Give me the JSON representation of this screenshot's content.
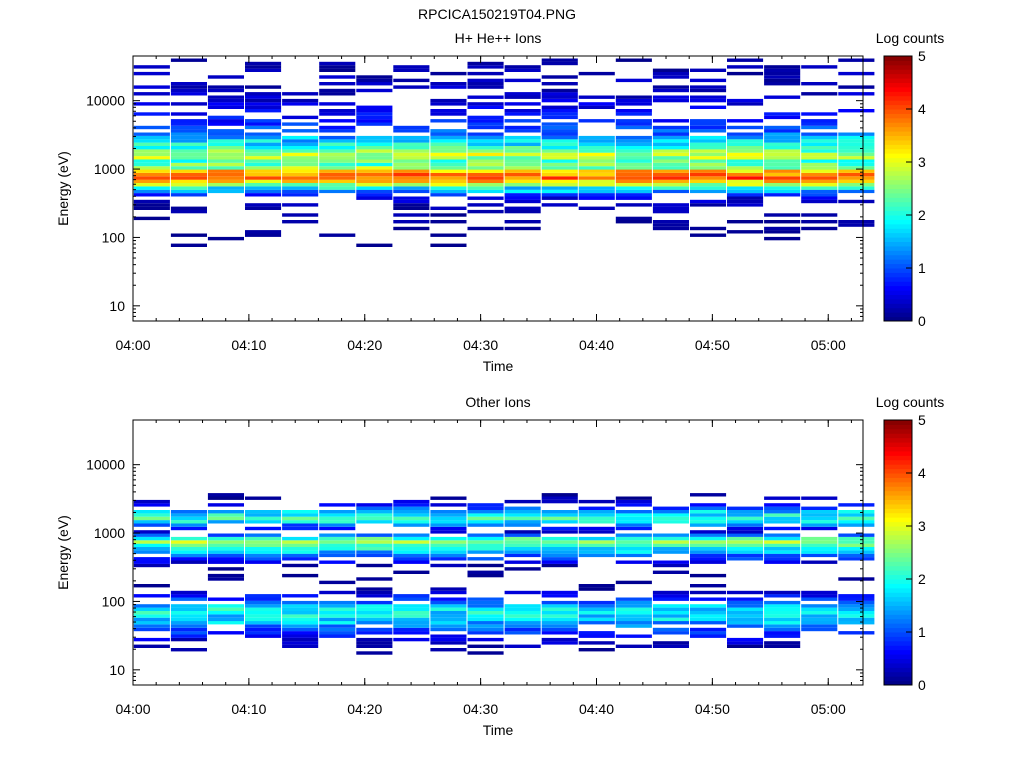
{
  "figure": {
    "title": "RPCICA150219T04.PNG"
  },
  "chart_data": [
    {
      "type": "heatmap",
      "title": "H+ He++ Ions",
      "xlabel": "Time",
      "ylabel": "Energy (eV)",
      "colorbar_label": "Log counts",
      "x_ticks": [
        "04:00",
        "04:10",
        "04:20",
        "04:30",
        "04:40",
        "04:50",
        "05:00"
      ],
      "y_ticks": [
        "10",
        "100",
        "1000",
        "10000"
      ],
      "colorbar_ticks": [
        "0",
        "1",
        "2",
        "3",
        "4",
        "5"
      ],
      "xlim": [
        "04:00",
        "05:03"
      ],
      "ylim": [
        6,
        45000
      ],
      "y_scale": "log",
      "clim": [
        0,
        5
      ],
      "time_bins": [
        "04:01.6",
        "04:04.8",
        "04:08.0",
        "04:11.2",
        "04:14.4",
        "04:17.6",
        "04:20.8",
        "04:24.0",
        "04:27.2",
        "04:30.4",
        "04:33.6",
        "04:36.8",
        "04:40.0",
        "04:43.2",
        "04:46.4",
        "04:49.6",
        "04:52.8",
        "04:56.0",
        "04:59.2",
        "05:02.4"
      ],
      "profile_log_counts": [
        {
          "energy": 40000,
          "value": 0.4
        },
        {
          "energy": 20000,
          "value": 0.5
        },
        {
          "energy": 10000,
          "value": 0.6
        },
        {
          "energy": 5000,
          "value": 0.9
        },
        {
          "energy": 3000,
          "value": 1.3
        },
        {
          "energy": 2000,
          "value": 2.0
        },
        {
          "energy": 1500,
          "value": 2.9
        },
        {
          "energy": 1200,
          "value": 2.2
        },
        {
          "energy": 1000,
          "value": 2.5
        },
        {
          "energy": 850,
          "value": 3.6
        },
        {
          "energy": 700,
          "value": 3.9
        },
        {
          "energy": 600,
          "value": 3.2
        },
        {
          "energy": 500,
          "value": 1.8
        },
        {
          "energy": 350,
          "value": 0.6
        },
        {
          "energy": 200,
          "value": 0.4
        },
        {
          "energy": 100,
          "value": 0.3
        },
        {
          "energy": 50,
          "value": 0.2
        },
        {
          "energy": 20,
          "value": 0.2
        },
        {
          "energy": 10,
          "value": 0.2
        }
      ]
    },
    {
      "type": "heatmap",
      "title": "Other Ions",
      "xlabel": "Time",
      "ylabel": "Energy (eV)",
      "colorbar_label": "Log counts",
      "x_ticks": [
        "04:00",
        "04:10",
        "04:20",
        "04:30",
        "04:40",
        "04:50",
        "05:00"
      ],
      "y_ticks": [
        "10",
        "100",
        "1000",
        "10000"
      ],
      "colorbar_ticks": [
        "0",
        "1",
        "2",
        "3",
        "4",
        "5"
      ],
      "xlim": [
        "04:00",
        "05:03"
      ],
      "ylim": [
        6,
        45000
      ],
      "y_scale": "log",
      "clim": [
        0,
        5
      ],
      "time_bins": [
        "04:01.6",
        "04:04.8",
        "04:08.0",
        "04:11.2",
        "04:14.4",
        "04:17.6",
        "04:20.8",
        "04:24.0",
        "04:27.2",
        "04:30.4",
        "04:33.6",
        "04:36.8",
        "04:40.0",
        "04:43.2",
        "04:46.4",
        "04:49.6",
        "04:52.8",
        "04:56.0",
        "04:59.2",
        "05:02.4"
      ],
      "profile_log_counts": [
        {
          "energy": 3500,
          "value": 0.3
        },
        {
          "energy": 2500,
          "value": 0.7
        },
        {
          "energy": 1800,
          "value": 1.8
        },
        {
          "energy": 1500,
          "value": 2.1
        },
        {
          "energy": 1000,
          "value": 0.4
        },
        {
          "energy": 800,
          "value": 2.0
        },
        {
          "energy": 700,
          "value": 2.6
        },
        {
          "energy": 600,
          "value": 2.0
        },
        {
          "energy": 300,
          "value": 0.3
        },
        {
          "energy": 150,
          "value": 0.3
        },
        {
          "energy": 90,
          "value": 1.3
        },
        {
          "energy": 70,
          "value": 1.9
        },
        {
          "energy": 50,
          "value": 1.6
        },
        {
          "energy": 35,
          "value": 1.1
        },
        {
          "energy": 25,
          "value": 0.6
        },
        {
          "energy": 15,
          "value": 0.2
        },
        {
          "energy": 10,
          "value": 0.1
        }
      ]
    }
  ]
}
